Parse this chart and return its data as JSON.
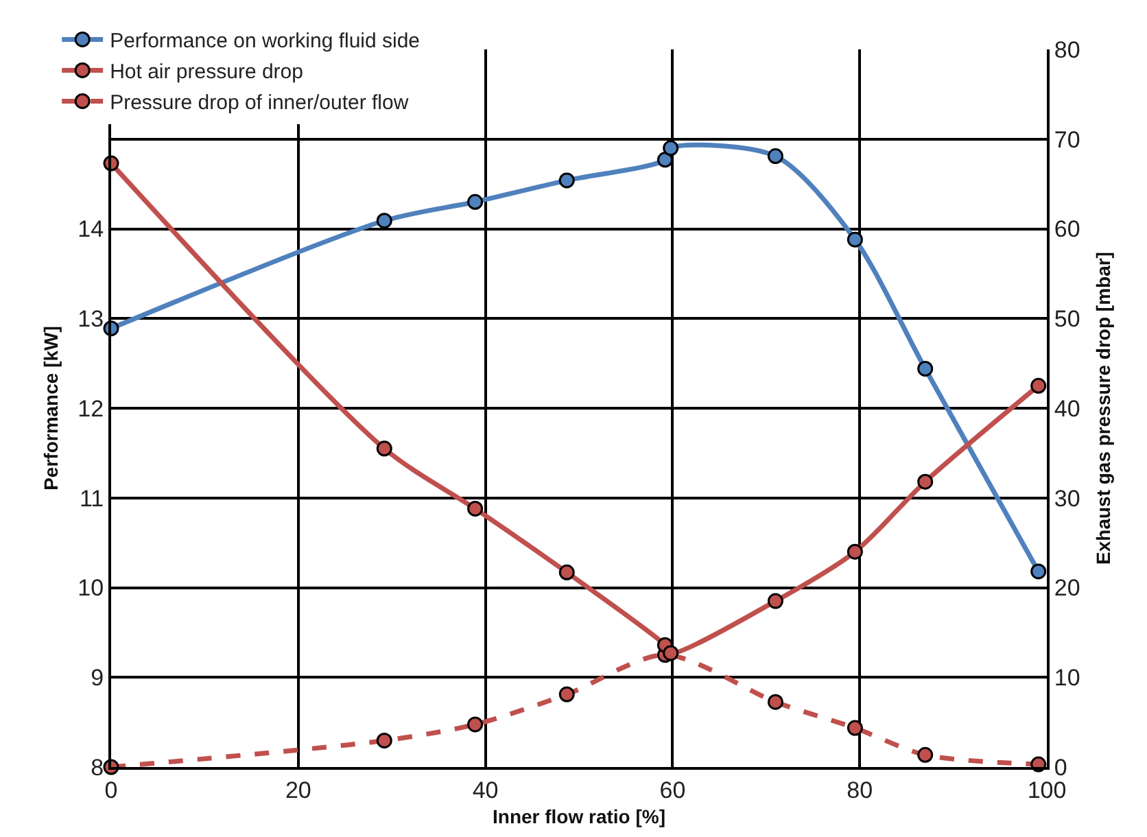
{
  "chart_data": {
    "type": "line",
    "xlabel": "Inner flow ratio [%]",
    "ylabel": "Performance [kW]",
    "y2label": "Exhaust gas pressure drop [mbar]",
    "xlim": [
      0,
      100
    ],
    "xticks": [
      0,
      20,
      40,
      60,
      80,
      100
    ],
    "ylim": [
      8,
      16
    ],
    "yticks": [
      8,
      9,
      10,
      11,
      12,
      13,
      14
    ],
    "y2lim": [
      0,
      80
    ],
    "y2ticks": [
      0,
      10,
      20,
      30,
      40,
      50,
      60,
      70,
      80
    ],
    "grid": true,
    "legend": "top left",
    "marker": "circle",
    "series": [
      {
        "name": "Performance on working fluid side",
        "color": "#4f81bd",
        "line_style": "solid",
        "x": [
          0,
          29.2,
          38.9,
          48.7,
          59.2,
          59.8,
          71.0,
          79.5,
          87.0,
          99.1
        ],
        "values": [
          12.89,
          14.09,
          14.3,
          14.54,
          14.77,
          14.9,
          14.81,
          13.88,
          12.44,
          10.18
        ]
      },
      {
        "name": "Hot air pressure drop",
        "color": "#c0504d",
        "line_style": "solid",
        "axis": "y2",
        "x": [
          0,
          29.2,
          38.9,
          48.7,
          59.2,
          59.8,
          71.0,
          79.5,
          87.0,
          99.1
        ],
        "values": [
          67.3,
          35.5,
          28.8,
          21.7,
          13.6,
          12.7,
          18.5,
          24.0,
          31.8,
          42.5
        ]
      },
      {
        "name": "Pressure drop of inner/outer flow",
        "color": "#c0504d",
        "line_style": "dashed",
        "axis": "y2",
        "x": [
          0,
          29.2,
          38.9,
          48.7,
          59.2,
          71.0,
          79.5,
          87.0,
          99.1
        ],
        "values": [
          0,
          2.95,
          4.75,
          8.1,
          12.5,
          7.25,
          4.35,
          1.35,
          0.3
        ]
      }
    ]
  }
}
